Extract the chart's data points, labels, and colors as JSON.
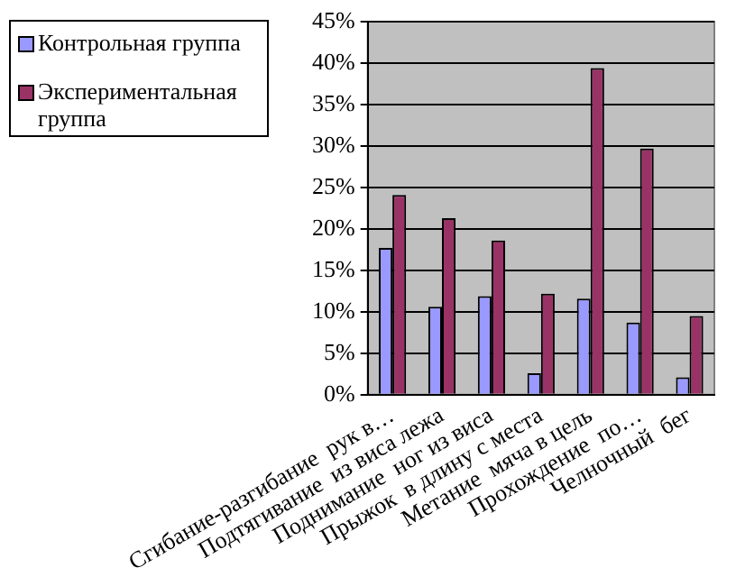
{
  "chart_data": {
    "type": "bar",
    "categories": [
      "Сгибание-разгибание  рук в…",
      "Подтягивание  из виса лежа",
      "Поднимание  ног из виса",
      "Прыжок  в длину с места",
      "Метание  мяча в цель",
      "Прохождение  по…",
      "Челночный  бег"
    ],
    "series": [
      {
        "name": "Контрольная группа",
        "color": "#9999ff",
        "values": [
          17.7,
          10.6,
          11.9,
          2.6,
          11.6,
          8.7,
          2.1
        ]
      },
      {
        "name": "Экспериментальная группа",
        "color": "#993366",
        "values": [
          24.1,
          21.3,
          18.6,
          12.2,
          39.4,
          29.7,
          9.5
        ]
      }
    ],
    "ylim": [
      0,
      45
    ],
    "yticks": [
      {
        "value": 0,
        "label": "0%"
      },
      {
        "value": 5,
        "label": "5%"
      },
      {
        "value": 10,
        "label": "10%"
      },
      {
        "value": 15,
        "label": "15%"
      },
      {
        "value": 20,
        "label": "20%"
      },
      {
        "value": 25,
        "label": "25%"
      },
      {
        "value": 30,
        "label": "30%"
      },
      {
        "value": 35,
        "label": "35%"
      },
      {
        "value": 40,
        "label": "40%"
      },
      {
        "value": 45,
        "label": "45%"
      }
    ],
    "grid": "y",
    "legend": "left"
  }
}
